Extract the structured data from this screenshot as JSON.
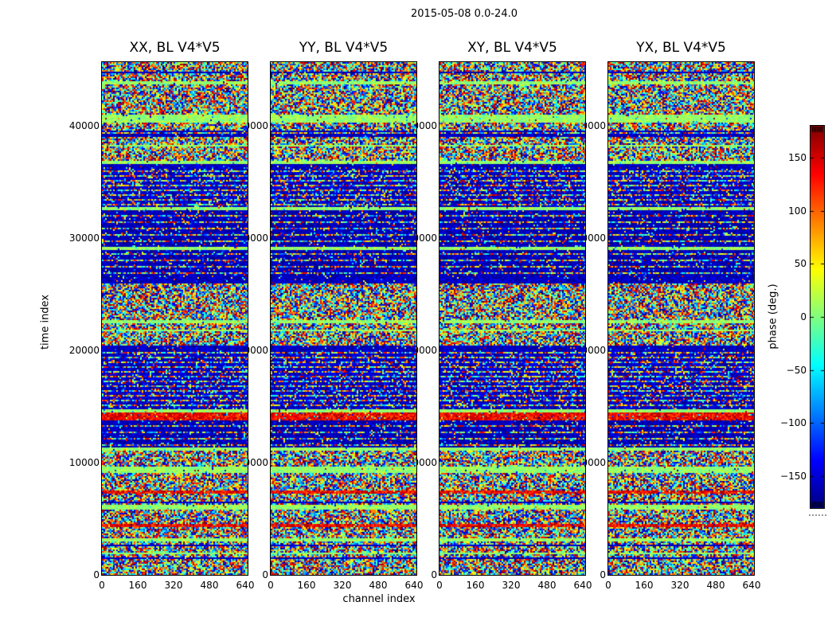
{
  "figure": {
    "title": "2015-05-08 0.0-24.0"
  },
  "chart_data": {
    "type": "heatmap",
    "title": "2015-05-08 0.0-24.0",
    "panels": [
      {
        "title": "XX, BL V4*V5"
      },
      {
        "title": "YY, BL V4*V5"
      },
      {
        "title": "XY, BL V4*V5"
      },
      {
        "title": "YX, BL V4*V5"
      }
    ],
    "x": {
      "label": "channel index",
      "ticks": [
        0,
        160,
        320,
        480,
        640
      ],
      "range": [
        0,
        650
      ]
    },
    "y": {
      "label": "time index",
      "ticks": [
        0,
        10000,
        20000,
        30000,
        40000
      ],
      "range": [
        0,
        45700
      ]
    },
    "colorbar": {
      "label": "phase (deg.)",
      "ticks": [
        150,
        100,
        50,
        0,
        -50,
        -100,
        -150
      ],
      "range": [
        -180,
        180
      ],
      "colormap": "jet",
      "extend": "both"
    },
    "legend": "none",
    "grid": false,
    "description": "Random uniform interferometric phase noise versus channel and time, with horizontal time bands that are flagged (solid pale green), low-phase (solid navy), striped (alternating navy/noise rows) or hot (orange-red).",
    "bands": [
      {
        "from": 0.0,
        "to": 0.018,
        "kind": "noise"
      },
      {
        "from": 0.018,
        "to": 0.022,
        "kind": "dark"
      },
      {
        "from": 0.022,
        "to": 0.038,
        "kind": "noise"
      },
      {
        "from": 0.038,
        "to": 0.042,
        "kind": "calm"
      },
      {
        "from": 0.042,
        "to": 0.105,
        "kind": "noise"
      },
      {
        "from": 0.105,
        "to": 0.116,
        "kind": "calm"
      },
      {
        "from": 0.116,
        "to": 0.14,
        "kind": "noise"
      },
      {
        "from": 0.14,
        "to": 0.145,
        "kind": "dark"
      },
      {
        "from": 0.145,
        "to": 0.193,
        "kind": "noise"
      },
      {
        "from": 0.193,
        "to": 0.198,
        "kind": "calm"
      },
      {
        "from": 0.198,
        "to": 0.204,
        "kind": "dark"
      },
      {
        "from": 0.204,
        "to": 0.284,
        "kind": "striped"
      },
      {
        "from": 0.284,
        "to": 0.29,
        "kind": "calm"
      },
      {
        "from": 0.29,
        "to": 0.36,
        "kind": "striped2"
      },
      {
        "from": 0.36,
        "to": 0.368,
        "kind": "calm"
      },
      {
        "from": 0.368,
        "to": 0.42,
        "kind": "striped2"
      },
      {
        "from": 0.42,
        "to": 0.432,
        "kind": "dark"
      },
      {
        "from": 0.432,
        "to": 0.503,
        "kind": "noise"
      },
      {
        "from": 0.503,
        "to": 0.51,
        "kind": "calm"
      },
      {
        "from": 0.51,
        "to": 0.553,
        "kind": "noise"
      },
      {
        "from": 0.553,
        "to": 0.565,
        "kind": "dark"
      },
      {
        "from": 0.565,
        "to": 0.678,
        "kind": "striped"
      },
      {
        "from": 0.678,
        "to": 0.684,
        "kind": "calm"
      },
      {
        "from": 0.684,
        "to": 0.7,
        "kind": "hot"
      },
      {
        "from": 0.7,
        "to": 0.752,
        "kind": "striped2"
      },
      {
        "from": 0.752,
        "to": 0.758,
        "kind": "calm"
      },
      {
        "from": 0.758,
        "to": 0.79,
        "kind": "noise"
      },
      {
        "from": 0.79,
        "to": 0.8,
        "kind": "calm"
      },
      {
        "from": 0.8,
        "to": 0.836,
        "kind": "noise"
      },
      {
        "from": 0.836,
        "to": 0.841,
        "kind": "hot"
      },
      {
        "from": 0.841,
        "to": 0.868,
        "kind": "noise"
      },
      {
        "from": 0.868,
        "to": 0.873,
        "kind": "calm"
      },
      {
        "from": 0.873,
        "to": 0.901,
        "kind": "noise"
      },
      {
        "from": 0.901,
        "to": 0.906,
        "kind": "hot"
      },
      {
        "from": 0.906,
        "to": 0.93,
        "kind": "noise"
      },
      {
        "from": 0.93,
        "to": 0.936,
        "kind": "calm"
      },
      {
        "from": 0.936,
        "to": 1.0,
        "kind": "noise"
      }
    ],
    "colors": {
      "jet_low": "#00007f",
      "jet_mid": "#7fff7f",
      "jet_high": "#7f0000",
      "frame": "#000000",
      "background": "#ffffff"
    }
  }
}
